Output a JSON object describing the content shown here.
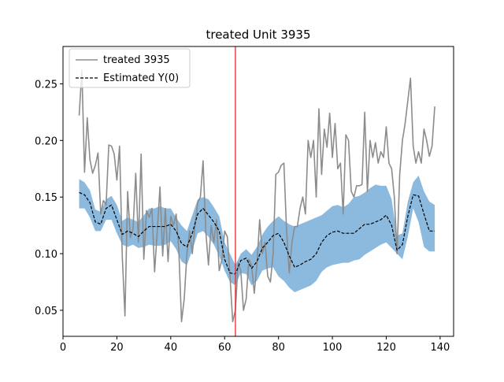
{
  "chart_data": {
    "type": "line",
    "title": "treated Unit 3935",
    "xlabel": "",
    "ylabel": "",
    "xlim": [
      0,
      145
    ],
    "ylim": [
      0.027,
      0.283
    ],
    "xticks": [
      0,
      20,
      40,
      60,
      80,
      100,
      120,
      140
    ],
    "yticks": [
      0.05,
      0.1,
      0.15,
      0.2,
      0.25
    ],
    "ytick_labels": [
      "0.05",
      "0.10",
      "0.15",
      "0.20",
      "0.25"
    ],
    "grid": false,
    "legend_position": "top-left",
    "treatment_line": {
      "x": 64,
      "color": "#e8262a"
    },
    "series": [
      {
        "name": "treated 3935",
        "color": "#8c8c8c",
        "style": "solid",
        "x": [
          6,
          7,
          8,
          9,
          10,
          11,
          12,
          13,
          14,
          15,
          16,
          17,
          18,
          19,
          20,
          21,
          22,
          23,
          24,
          25,
          26,
          27,
          28,
          29,
          30,
          31,
          32,
          33,
          34,
          35,
          36,
          37,
          38,
          39,
          40,
          41,
          42,
          43,
          44,
          45,
          46,
          47,
          48,
          49,
          50,
          51,
          52,
          53,
          54,
          55,
          56,
          57,
          58,
          59,
          60,
          61,
          62,
          63,
          64,
          65,
          66,
          67,
          68,
          69,
          70,
          71,
          72,
          73,
          74,
          75,
          76,
          77,
          78,
          79,
          80,
          81,
          82,
          83,
          84,
          85,
          86,
          87,
          88,
          89,
          90,
          91,
          92,
          93,
          94,
          95,
          96,
          97,
          98,
          99,
          100,
          101,
          102,
          103,
          104,
          105,
          106,
          107,
          108,
          109,
          110,
          111,
          112,
          113,
          114,
          115,
          116,
          117,
          118,
          119,
          120,
          121,
          122,
          123,
          124,
          125,
          126,
          127,
          128,
          129,
          130,
          131,
          132,
          133,
          134,
          135,
          136,
          137,
          138
        ],
        "y": [
          0.222,
          0.262,
          0.172,
          0.22,
          0.183,
          0.171,
          0.178,
          0.189,
          0.135,
          0.147,
          0.143,
          0.196,
          0.195,
          0.188,
          0.165,
          0.195,
          0.098,
          0.045,
          0.155,
          0.114,
          0.122,
          0.171,
          0.11,
          0.188,
          0.095,
          0.138,
          0.132,
          0.14,
          0.084,
          0.12,
          0.159,
          0.098,
          0.14,
          0.093,
          0.133,
          0.125,
          0.135,
          0.103,
          0.04,
          0.06,
          0.1,
          0.12,
          0.1,
          0.125,
          0.145,
          0.15,
          0.182,
          0.12,
          0.09,
          0.125,
          0.11,
          0.13,
          0.085,
          0.095,
          0.12,
          0.115,
          0.08,
          0.04,
          0.05,
          0.092,
          0.085,
          0.05,
          0.06,
          0.095,
          0.09,
          0.065,
          0.09,
          0.13,
          0.1,
          0.11,
          0.08,
          0.075,
          0.1,
          0.17,
          0.172,
          0.178,
          0.18,
          0.12,
          0.083,
          0.11,
          0.124,
          0.124,
          0.14,
          0.15,
          0.135,
          0.2,
          0.185,
          0.2,
          0.15,
          0.228,
          0.17,
          0.21,
          0.194,
          0.224,
          0.185,
          0.215,
          0.175,
          0.18,
          0.135,
          0.205,
          0.2,
          0.155,
          0.15,
          0.16,
          0.16,
          0.161,
          0.225,
          0.155,
          0.2,
          0.185,
          0.198,
          0.18,
          0.19,
          0.185,
          0.212,
          0.18,
          0.175,
          0.15,
          0.1,
          0.17,
          0.2,
          0.215,
          0.235,
          0.255,
          0.195,
          0.18,
          0.19,
          0.18,
          0.21,
          0.2,
          0.186,
          0.195,
          0.23
        ]
      },
      {
        "name": "Estimated Y(0)",
        "color": "#000000",
        "style": "dashed",
        "x": [
          6,
          8,
          10,
          12,
          14,
          16,
          18,
          20,
          22,
          24,
          26,
          28,
          30,
          32,
          34,
          36,
          38,
          40,
          42,
          44,
          46,
          48,
          50,
          52,
          54,
          56,
          58,
          60,
          62,
          64,
          66,
          68,
          70,
          72,
          74,
          76,
          78,
          80,
          82,
          84,
          86,
          88,
          90,
          92,
          94,
          96,
          98,
          100,
          102,
          104,
          106,
          108,
          110,
          112,
          114,
          116,
          118,
          120,
          122,
          124,
          126,
          128,
          130,
          132,
          134,
          136,
          138
        ],
        "y": [
          0.154,
          0.152,
          0.145,
          0.128,
          0.126,
          0.14,
          0.143,
          0.13,
          0.117,
          0.12,
          0.118,
          0.115,
          0.12,
          0.124,
          0.124,
          0.124,
          0.124,
          0.126,
          0.12,
          0.109,
          0.106,
          0.118,
          0.135,
          0.14,
          0.134,
          0.128,
          0.12,
          0.095,
          0.083,
          0.082,
          0.094,
          0.096,
          0.087,
          0.093,
          0.105,
          0.11,
          0.116,
          0.118,
          0.11,
          0.098,
          0.088,
          0.09,
          0.093,
          0.095,
          0.1,
          0.11,
          0.116,
          0.119,
          0.12,
          0.118,
          0.118,
          0.118,
          0.122,
          0.126,
          0.126,
          0.128,
          0.13,
          0.134,
          0.125,
          0.103,
          0.108,
          0.133,
          0.152,
          0.151,
          0.135,
          0.12,
          0.12
        ]
      }
    ],
    "band": {
      "color": "#6fa8d6",
      "x": [
        6,
        8,
        10,
        12,
        14,
        16,
        18,
        20,
        22,
        24,
        26,
        28,
        30,
        32,
        34,
        36,
        38,
        40,
        42,
        44,
        46,
        48,
        50,
        52,
        54,
        56,
        58,
        60,
        62,
        64,
        66,
        68,
        70,
        72,
        74,
        76,
        78,
        80,
        82,
        84,
        86,
        88,
        90,
        92,
        94,
        96,
        98,
        100,
        102,
        104,
        106,
        108,
        110,
        112,
        114,
        116,
        118,
        120,
        122,
        124,
        126,
        128,
        130,
        132,
        134,
        136,
        138
      ],
      "lower": [
        0.14,
        0.14,
        0.132,
        0.12,
        0.12,
        0.13,
        0.13,
        0.118,
        0.108,
        0.106,
        0.108,
        0.105,
        0.106,
        0.108,
        0.107,
        0.107,
        0.108,
        0.111,
        0.104,
        0.093,
        0.09,
        0.103,
        0.118,
        0.12,
        0.115,
        0.108,
        0.098,
        0.085,
        0.075,
        0.072,
        0.083,
        0.082,
        0.072,
        0.076,
        0.085,
        0.087,
        0.088,
        0.08,
        0.076,
        0.07,
        0.066,
        0.068,
        0.07,
        0.072,
        0.076,
        0.084,
        0.088,
        0.09,
        0.091,
        0.092,
        0.092,
        0.094,
        0.095,
        0.099,
        0.102,
        0.105,
        0.108,
        0.11,
        0.105,
        0.1,
        0.095,
        0.115,
        0.14,
        0.128,
        0.106,
        0.102,
        0.102
      ],
      "upper": [
        0.166,
        0.163,
        0.156,
        0.139,
        0.137,
        0.148,
        0.151,
        0.143,
        0.129,
        0.132,
        0.13,
        0.128,
        0.134,
        0.14,
        0.14,
        0.142,
        0.14,
        0.14,
        0.132,
        0.125,
        0.12,
        0.134,
        0.148,
        0.15,
        0.148,
        0.141,
        0.133,
        0.11,
        0.1,
        0.09,
        0.1,
        0.104,
        0.099,
        0.106,
        0.117,
        0.124,
        0.129,
        0.133,
        0.129,
        0.126,
        0.124,
        0.126,
        0.128,
        0.13,
        0.132,
        0.134,
        0.138,
        0.142,
        0.143,
        0.141,
        0.144,
        0.15,
        0.151,
        0.154,
        0.158,
        0.161,
        0.16,
        0.16,
        0.148,
        0.116,
        0.118,
        0.146,
        0.163,
        0.169,
        0.155,
        0.146,
        0.143
      ]
    }
  }
}
